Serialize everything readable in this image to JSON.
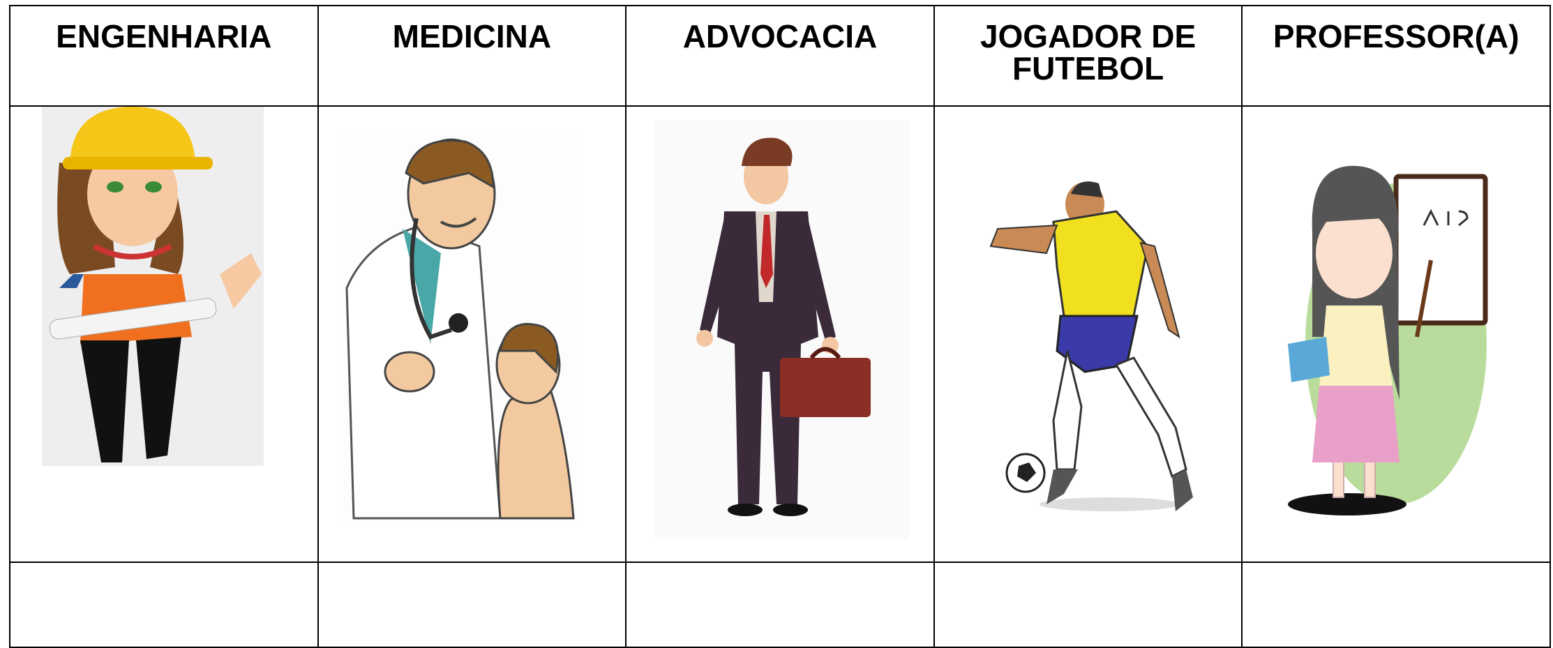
{
  "table": {
    "header": [
      "ENGENHARIA",
      "MEDICINA",
      "ADVOCACIA",
      "JOGADOR DE FUTEBOL",
      "PROFESSOR(A)"
    ]
  }
}
